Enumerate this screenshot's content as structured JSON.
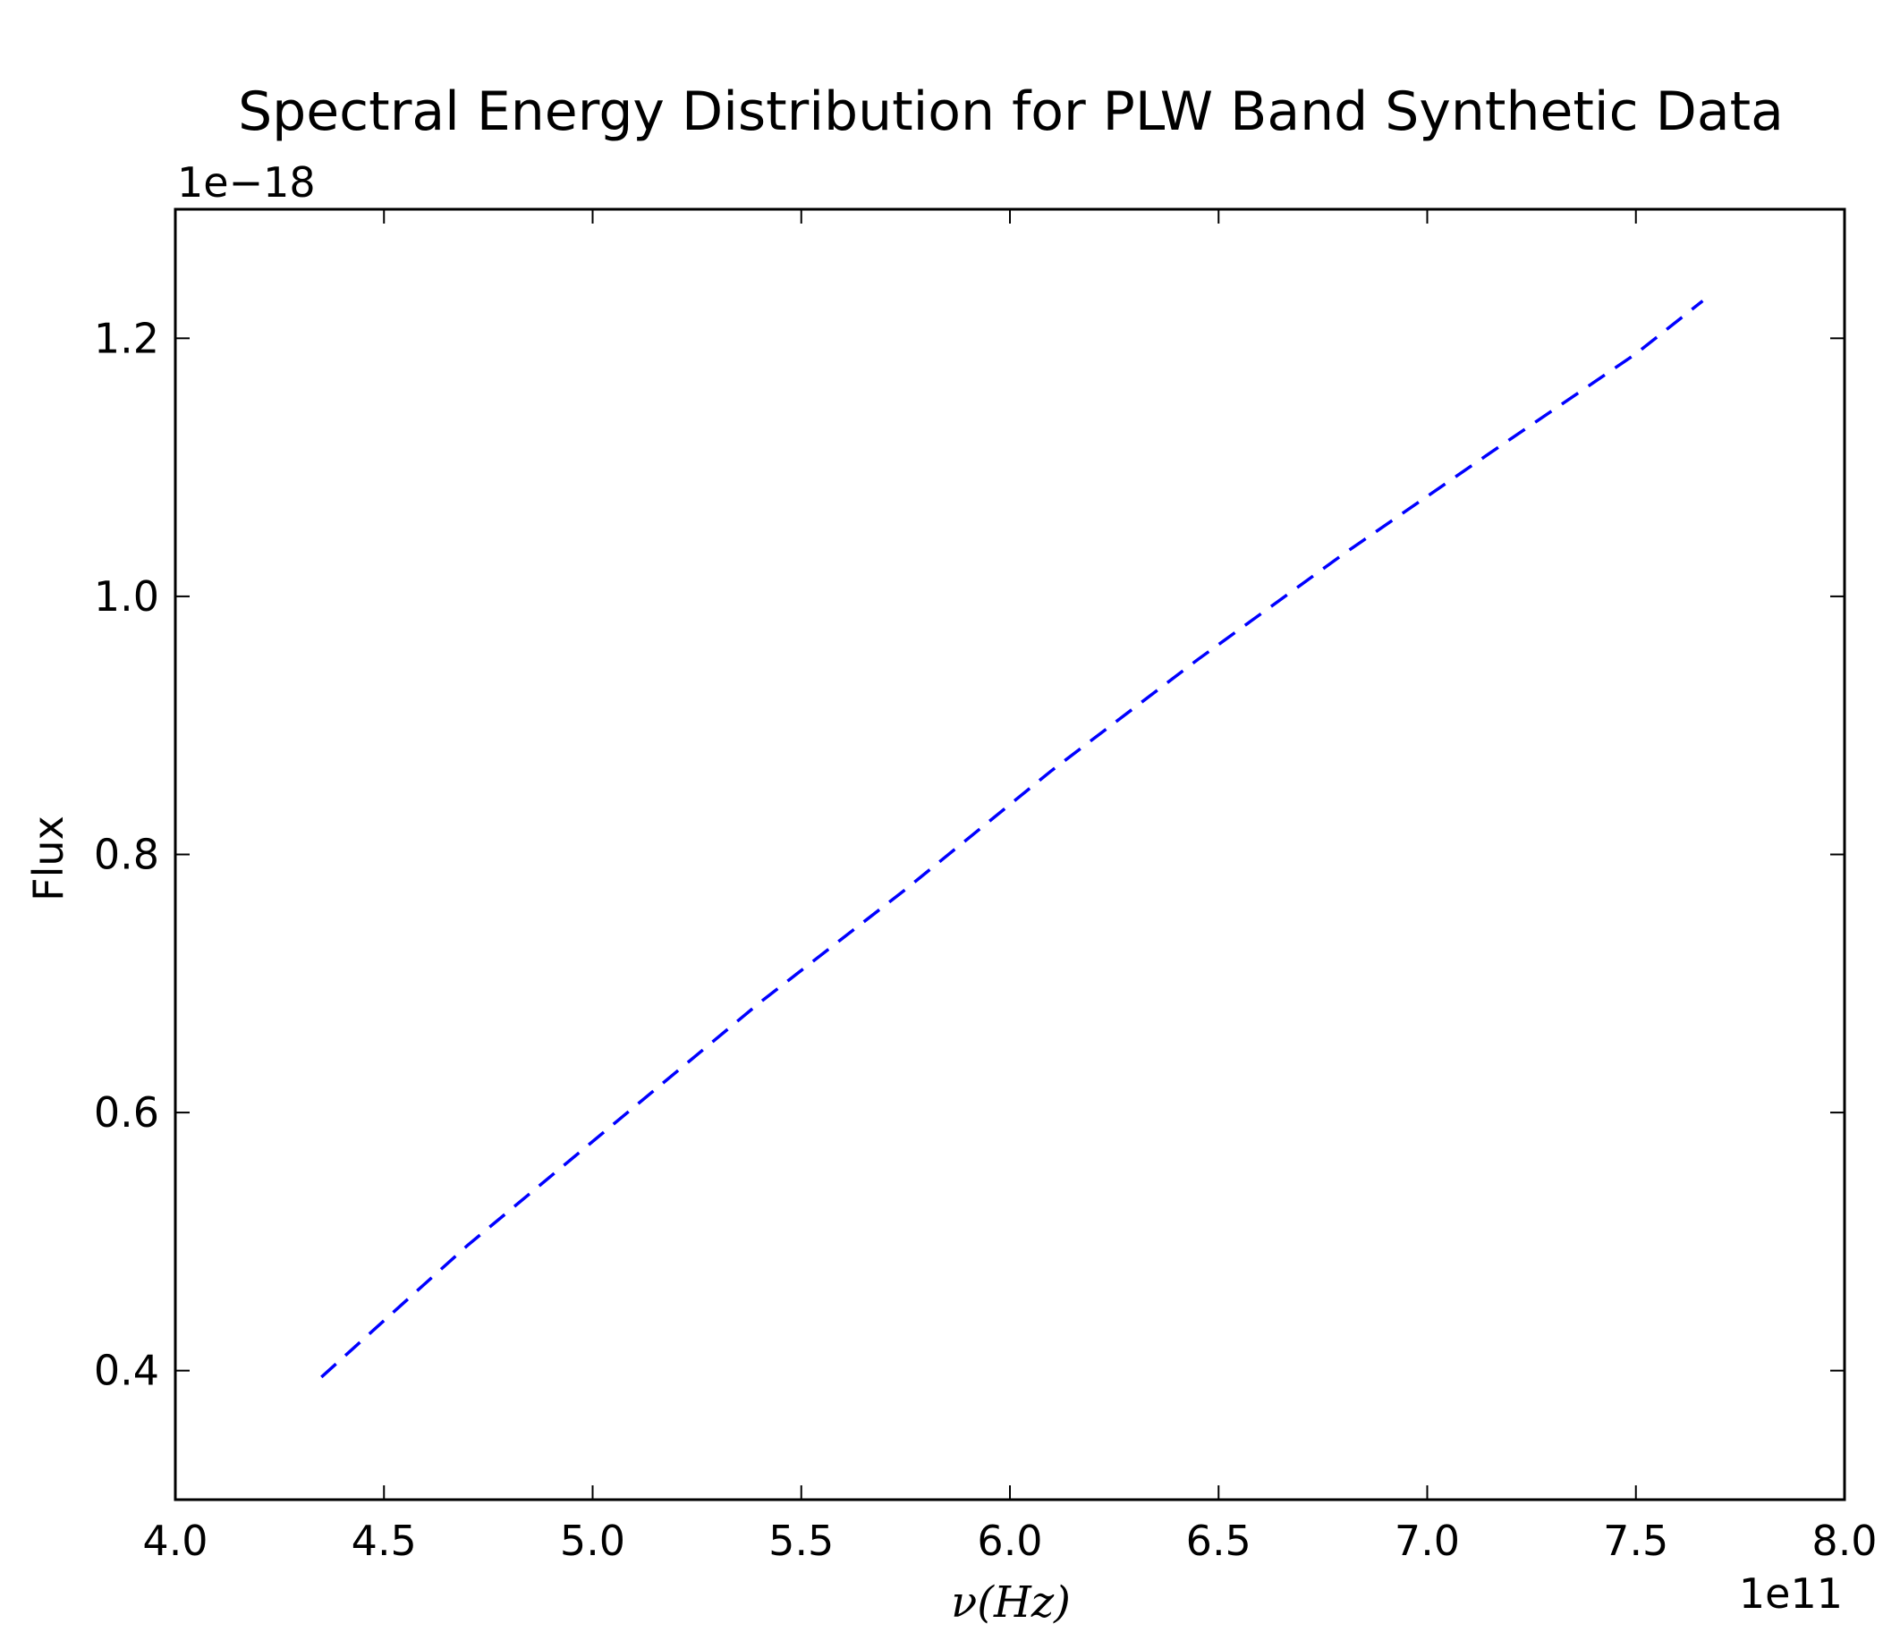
{
  "chart_data": {
    "type": "line",
    "title": "Spectral Energy Distribution for PLW Band Synthetic Data",
    "xlabel": "ν(Hz)",
    "ylabel": "Flux",
    "x_offset_label": "1e11",
    "y_offset_label": "1e−18",
    "xlim": [
      4.0,
      8.0
    ],
    "ylim": [
      0.3,
      1.3
    ],
    "x_ticks": [
      "4.0",
      "4.5",
      "5.0",
      "5.5",
      "6.0",
      "6.5",
      "7.0",
      "7.5",
      "8.0"
    ],
    "y_ticks": [
      "0.4",
      "0.6",
      "0.8",
      "1.0",
      "1.2"
    ],
    "grid": false,
    "series": [
      {
        "line_style": "dashed",
        "color": "#0000ff",
        "x": [
          4.35,
          4.7,
          5.05,
          5.4,
          5.75,
          6.1,
          6.45,
          6.8,
          7.15,
          7.5,
          7.66
        ],
        "y": [
          0.395,
          0.497,
          0.591,
          0.685,
          0.773,
          0.865,
          0.951,
          1.033,
          1.111,
          1.188,
          1.229
        ]
      }
    ]
  }
}
